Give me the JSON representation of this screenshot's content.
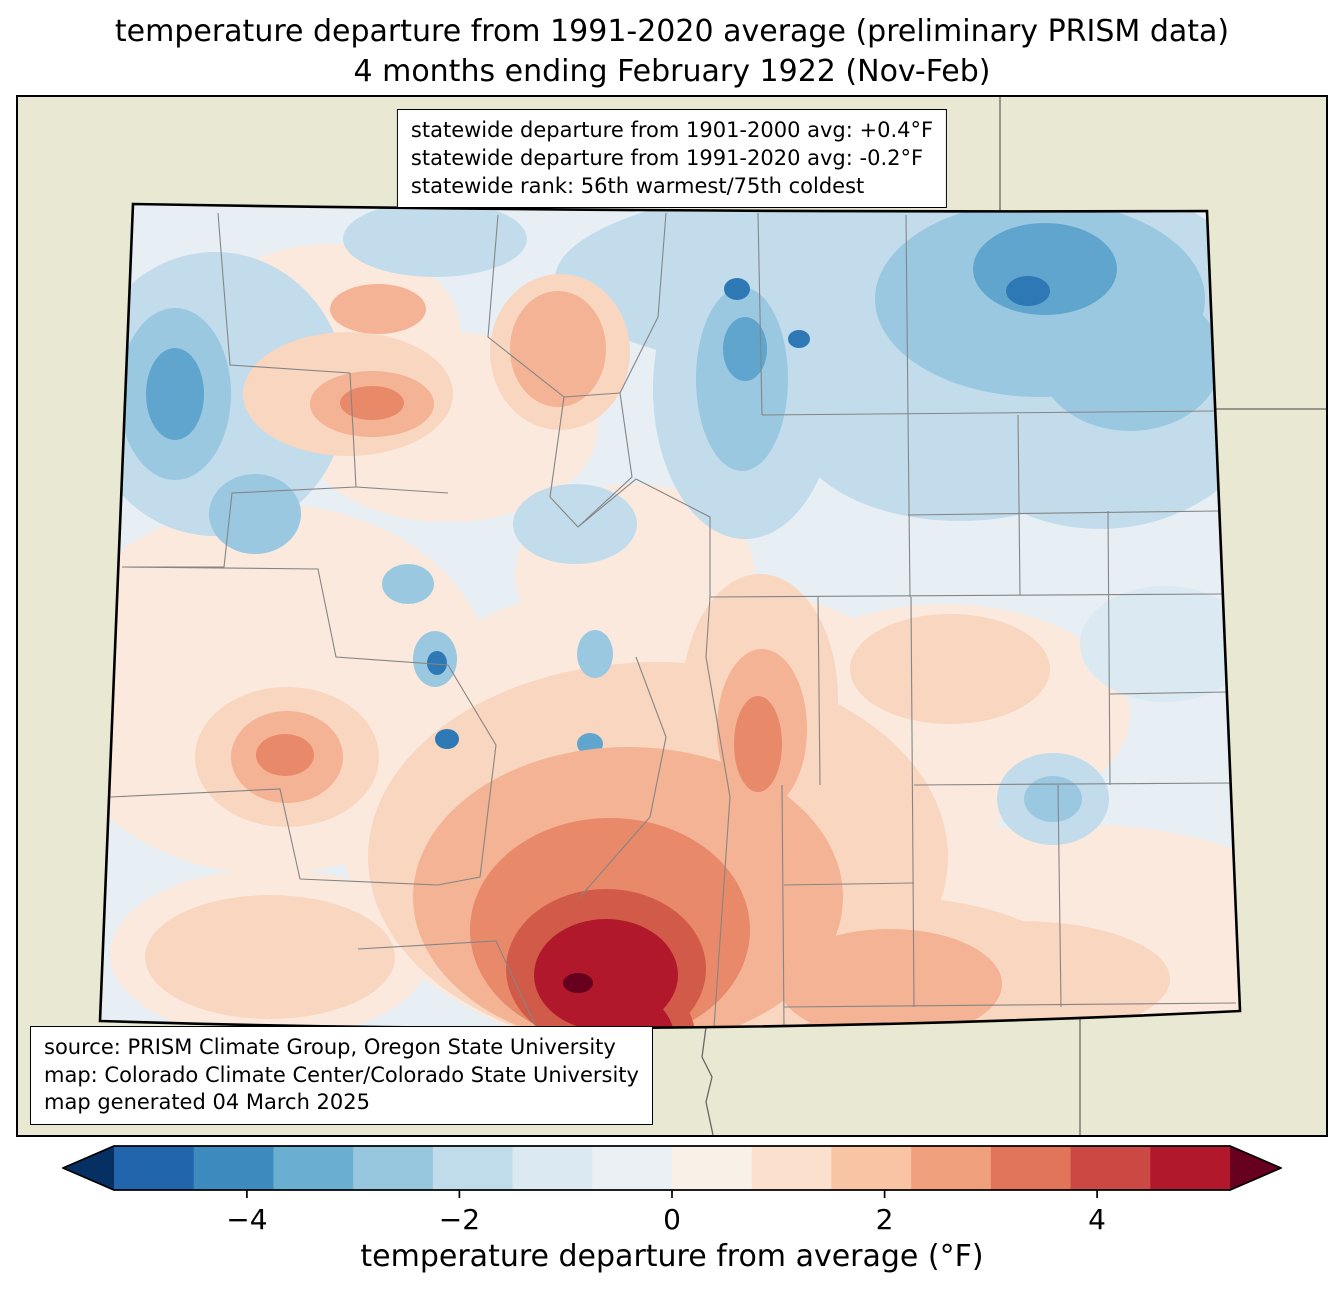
{
  "title": {
    "line1": "temperature departure from 1991-2020 average (preliminary PRISM data)",
    "line2": "4 months ending February 1922 (Nov-Feb)"
  },
  "stats_box": {
    "lines": [
      "statewide departure from 1901-2000 avg: +0.4°F",
      "statewide departure from 1991-2020 avg: -0.2°F",
      "statewide rank: 56th warmest/75th coldest"
    ]
  },
  "source_box": {
    "lines": [
      "source: PRISM Climate Group, Oregon State University",
      "map: Colorado Climate Center/Colorado State University",
      "map generated 04 March 2025"
    ]
  },
  "colorbar": {
    "label": "temperature departure from average (°F)",
    "range": [
      -5.25,
      5.25
    ],
    "ticks": [
      {
        "value": -4,
        "label": "−4"
      },
      {
        "value": -2,
        "label": "−2"
      },
      {
        "value": 0,
        "label": "0"
      },
      {
        "value": 2,
        "label": "2"
      },
      {
        "value": 4,
        "label": "4"
      }
    ],
    "colors": [
      "#2166ac",
      "#3c8abe",
      "#6aaed1",
      "#97c6df",
      "#c0dceb",
      "#dbe9f2",
      "#eaf0f4",
      "#f9f0e8",
      "#fbe0cd",
      "#f8c4a4",
      "#f1a07e",
      "#e0755a",
      "#cb4942",
      "#b2182b"
    ],
    "under_color": "#053061",
    "over_color": "#67001f"
  },
  "map_style": {
    "outside_color": "#e9e8d2",
    "state_border_color": "#000000",
    "county_line_color": "#858585",
    "neighbor_line_color": "#666666",
    "base_fill": "#e7eef4"
  }
}
